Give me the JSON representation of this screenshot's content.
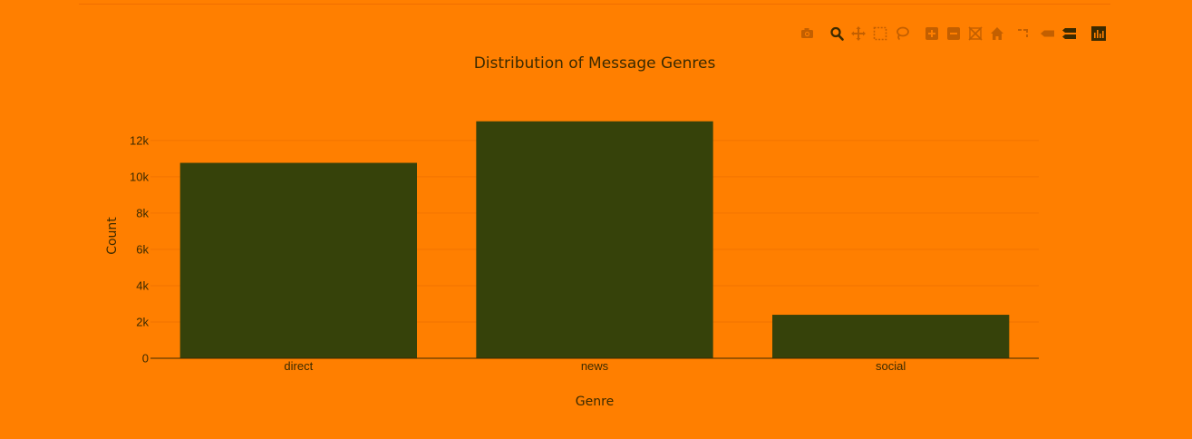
{
  "modebar": {
    "buttons": [
      {
        "name": "camera-icon"
      },
      {
        "name": "zoom-icon"
      },
      {
        "name": "pan-icon"
      },
      {
        "name": "box-select-icon"
      },
      {
        "name": "lasso-select-icon"
      },
      {
        "name": "zoom-in-icon"
      },
      {
        "name": "zoom-out-icon"
      },
      {
        "name": "autoscale-icon"
      },
      {
        "name": "home-icon"
      },
      {
        "name": "spike-lines-icon"
      },
      {
        "name": "hover-closest-icon"
      },
      {
        "name": "hover-compare-icon"
      },
      {
        "name": "plotly-logo-icon"
      }
    ]
  },
  "colors": {
    "background": "#ff7f00",
    "bar": "#36420a",
    "grid": "#f27300",
    "text": "#3b2a00",
    "icon": "#c35f00",
    "icon_active": "#3b2a00"
  },
  "chart_data": {
    "type": "bar",
    "title": "Distribution of Message Genres",
    "xlabel": "Genre",
    "ylabel": "Count",
    "categories": [
      "direct",
      "news",
      "social"
    ],
    "values": [
      10766,
      13054,
      2396
    ],
    "ylim": [
      0,
      13741
    ],
    "yticks": [
      0,
      2000,
      4000,
      6000,
      8000,
      10000,
      12000
    ],
    "ytick_labels": [
      "0",
      "2k",
      "4k",
      "6k",
      "8k",
      "10k",
      "12k"
    ],
    "grid": true,
    "legend": "none"
  }
}
